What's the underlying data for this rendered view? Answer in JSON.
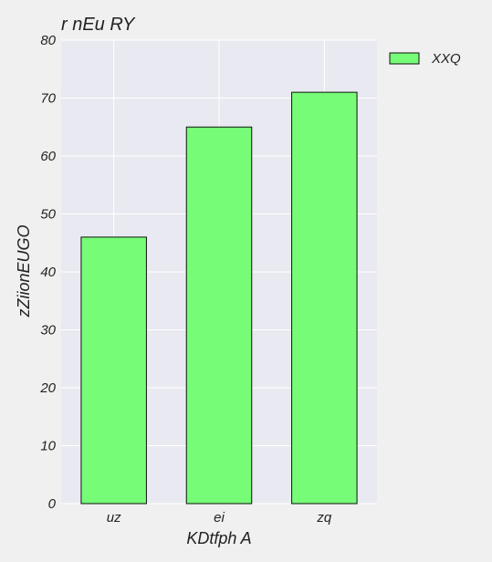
{
  "chart_data": {
    "type": "bar",
    "title": "r nEu RY",
    "xlabel": "KDtfph A",
    "ylabel": "zZiionEUGO",
    "categories": [
      "uz",
      "ei",
      "zq"
    ],
    "series": [
      {
        "name": "XXQ",
        "values": [
          46,
          65,
          71
        ]
      }
    ],
    "ylim": [
      0,
      80
    ],
    "yticks": [
      0,
      10,
      20,
      30,
      40,
      50,
      60,
      70,
      80
    ],
    "grid": true,
    "legend": "top-right, outside plot",
    "colors": {
      "bar_fill": "#77fc77",
      "bar_stroke": "#111111",
      "plot_bg": "#e9e9f1",
      "grid": "#ffffff"
    }
  }
}
